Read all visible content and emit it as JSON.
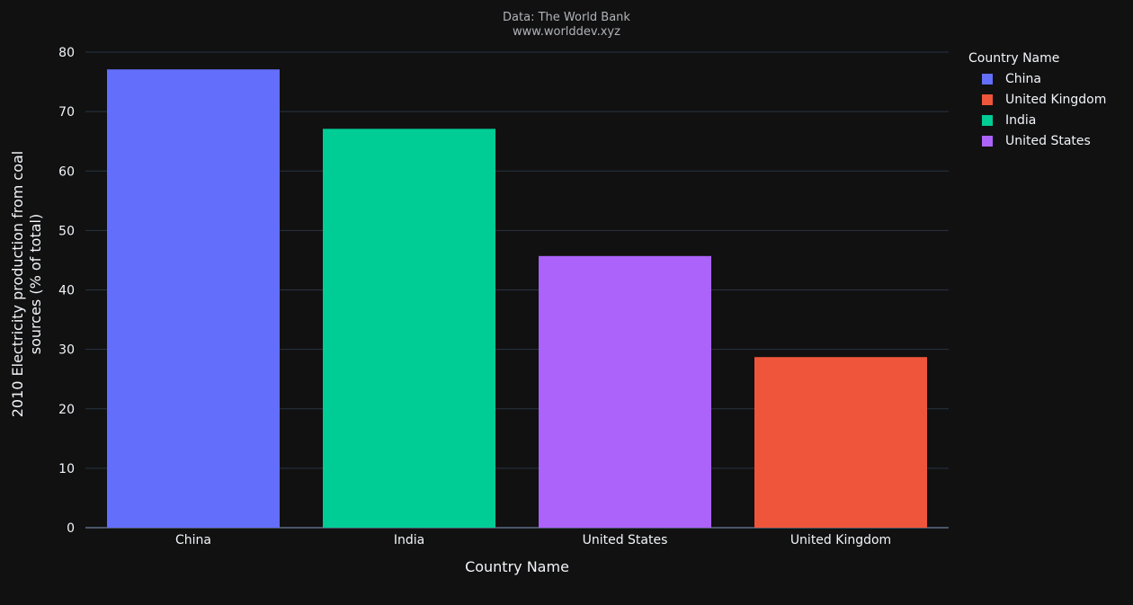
{
  "annotations": [
    "Data: The World Bank",
    "www.worlddev.xyz"
  ],
  "legend": {
    "title": "Country Name",
    "items": [
      {
        "label": "China",
        "color": "#636efa"
      },
      {
        "label": "United Kingdom",
        "color": "#ef553b"
      },
      {
        "label": "India",
        "color": "#00cc96"
      },
      {
        "label": "United States",
        "color": "#ab63fa"
      }
    ]
  },
  "chart_data": {
    "type": "bar",
    "categories": [
      "China",
      "India",
      "United States",
      "United Kingdom"
    ],
    "values": [
      77.1,
      67.1,
      45.7,
      28.7
    ],
    "colors": [
      "#636efa",
      "#00cc96",
      "#ab63fa",
      "#ef553b"
    ],
    "xlabel": "Country Name",
    "ylabel": "2010 Electricity production from coal sources (% of total)",
    "ylabel_lines": [
      "2010 Electricity production from coal",
      "sources (% of total)"
    ],
    "ylim": [
      0,
      80
    ],
    "yticks": [
      0,
      10,
      20,
      30,
      40,
      50,
      60,
      70,
      80
    ],
    "grid": true,
    "legend_position": "right"
  }
}
